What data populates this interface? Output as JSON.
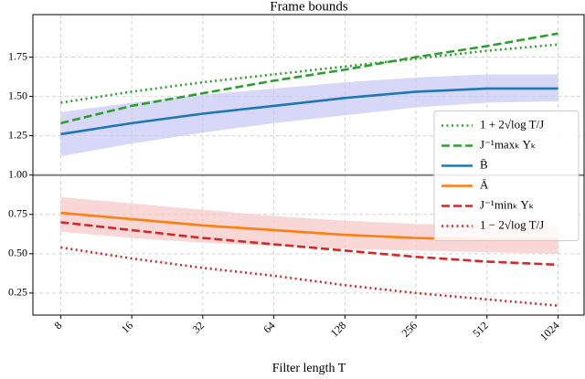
{
  "chart_data": {
    "type": "line",
    "title": "Frame bounds",
    "xlabel": "Filter length T",
    "xscale": "log2",
    "x": [
      8,
      16,
      32,
      64,
      128,
      256,
      512,
      1024
    ],
    "xlim": [
      6.1,
      1320
    ],
    "xticks": [
      8,
      16,
      32,
      64,
      128,
      256,
      512,
      1024
    ],
    "ylim": [
      0.11,
      2.02
    ],
    "yticks": [
      0.25,
      {
        "value": 0.5,
        "label": "0.50"
      },
      0.75,
      {
        "value": 1.0,
        "label": "1.00"
      },
      1.25,
      {
        "value": 1.5,
        "label": "1.50"
      },
      1.75
    ],
    "grid": true,
    "legend": "center right",
    "hline": {
      "value": 1.0,
      "color": "#808080"
    },
    "series": [
      {
        "name": "1 + 2√log T/J",
        "color": "#2ca02c",
        "dash": "dotted",
        "values": [
          1.46,
          1.53,
          1.59,
          1.64,
          1.69,
          1.74,
          1.79,
          1.83
        ]
      },
      {
        "name": "J⁻¹maxₖ Yₖ",
        "color": "#2ca02c",
        "dash": "dashed",
        "values": [
          1.33,
          1.44,
          1.52,
          1.6,
          1.67,
          1.75,
          1.82,
          1.9
        ]
      },
      {
        "name": "B̄",
        "color": "#1f77b4",
        "dash": "solid",
        "values": [
          1.26,
          1.33,
          1.39,
          1.44,
          1.49,
          1.53,
          1.55,
          1.55
        ],
        "band_color": "#c9c9f6",
        "band_lower": [
          1.12,
          1.2,
          1.27,
          1.33,
          1.38,
          1.43,
          1.46,
          1.47
        ],
        "band_upper": [
          1.4,
          1.46,
          1.51,
          1.55,
          1.59,
          1.62,
          1.64,
          1.64
        ]
      },
      {
        "name": "Ā",
        "color": "#ff7f0e",
        "dash": "solid",
        "values": [
          0.76,
          0.72,
          0.68,
          0.65,
          0.62,
          0.6,
          0.59,
          0.59
        ],
        "band_color": "#f8c9c9",
        "band_lower": [
          0.64,
          0.6,
          0.57,
          0.55,
          0.53,
          0.52,
          0.51,
          0.5
        ],
        "band_upper": [
          0.86,
          0.82,
          0.78,
          0.74,
          0.71,
          0.69,
          0.68,
          0.68
        ]
      },
      {
        "name": "J⁻¹minₖ Yₖ",
        "color": "#d62728",
        "dash": "dashed",
        "values": [
          0.7,
          0.65,
          0.6,
          0.56,
          0.52,
          0.48,
          0.45,
          0.43
        ]
      },
      {
        "name": "1 − 2√log T/J",
        "color": "#d62728",
        "dash": "dotted",
        "values": [
          0.54,
          0.47,
          0.41,
          0.36,
          0.3,
          0.25,
          0.21,
          0.17
        ]
      }
    ]
  }
}
